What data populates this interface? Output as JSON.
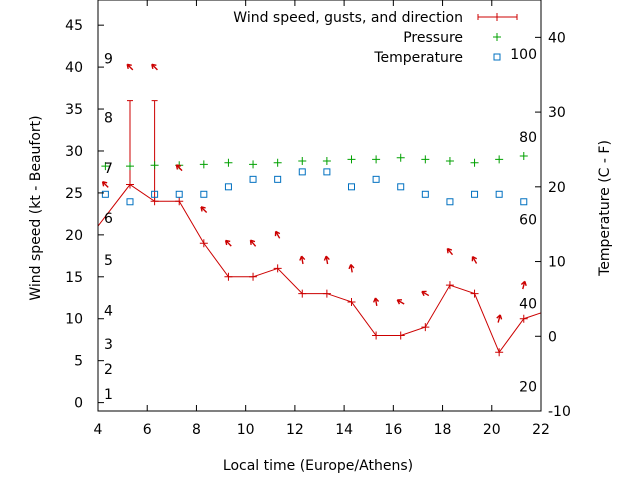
{
  "chart_data": {
    "type": "line",
    "title": "",
    "xlabel": "Local time (Europe/Athens)",
    "ylabel": "Wind speed (kt - Beaufort)",
    "y2label": "Temperature (C - F)",
    "xlim": [
      4,
      22
    ],
    "ylim": [
      -1,
      48
    ],
    "y2lim": [
      -10,
      45
    ],
    "xticks": [
      "4",
      "6",
      "8",
      "10",
      "12",
      "14",
      "16",
      "18",
      "20",
      "22"
    ],
    "yticks": [
      "0",
      "5",
      "10",
      "15",
      "20",
      "25",
      "30",
      "35",
      "40",
      "45"
    ],
    "y2ticks": [
      "-10",
      "0",
      "10",
      "20",
      "30",
      "40"
    ],
    "beaufort_labels": [
      {
        "label": "1",
        "y": 1
      },
      {
        "label": "2",
        "y": 4
      },
      {
        "label": "3",
        "y": 7
      },
      {
        "label": "4",
        "y": 11
      },
      {
        "label": "5",
        "y": 17
      },
      {
        "label": "6",
        "y": 22
      },
      {
        "label": "7",
        "y": 28
      },
      {
        "label": "8",
        "y": 34
      },
      {
        "label": "9",
        "y": 41
      }
    ],
    "fahrenheit_labels": [
      {
        "label": "20",
        "y2": -6.7
      },
      {
        "label": "40",
        "y2": 4.4
      },
      {
        "label": "60",
        "y2": 15.6
      },
      {
        "label": "80",
        "y2": 26.7
      },
      {
        "label": "100",
        "y2": 37.8
      }
    ],
    "legend": {
      "position": "top-right",
      "items": [
        {
          "label": "Wind speed, gusts, and direction",
          "color": "#cc0000",
          "marker": "errorbar"
        },
        {
          "label": "Pressure",
          "color": "#00a000",
          "marker": "plus"
        },
        {
          "label": "Temperature",
          "color": "#0070c0",
          "marker": "square"
        }
      ]
    },
    "wind_speed": {
      "x": [
        3.2,
        5.3,
        6.3,
        7.3,
        8.3,
        9.3,
        10.3,
        11.3,
        12.3,
        13.3,
        14.3,
        15.3,
        16.3,
        17.3,
        18.3,
        19.3,
        20.3,
        21.3,
        22.3
      ],
      "y": [
        18,
        26,
        24,
        24,
        19,
        15,
        15,
        16,
        13,
        13,
        12,
        8,
        8,
        9,
        14,
        13,
        6,
        10,
        11
      ]
    },
    "gusts": [
      {
        "x": 5.3,
        "y": 36
      },
      {
        "x": 6.3,
        "y": 36
      }
    ],
    "wind_direction": {
      "x": [
        4.3,
        5.3,
        6.3,
        7.3,
        8.3,
        9.3,
        10.3,
        11.3,
        12.3,
        13.3,
        14.3,
        15.3,
        16.3,
        17.3,
        18.3,
        19.3,
        20.3,
        21.3
      ],
      "y": [
        26,
        40,
        40,
        28,
        23,
        19,
        19,
        20,
        17,
        17,
        16,
        12,
        12,
        13,
        18,
        17,
        10,
        14
      ],
      "deg": [
        315,
        315,
        315,
        315,
        315,
        315,
        320,
        330,
        350,
        350,
        350,
        350,
        300,
        300,
        320,
        330,
        15,
        15
      ]
    },
    "pressure": {
      "x": [
        4.3,
        5.3,
        6.3,
        7.3,
        8.3,
        9.3,
        10.3,
        11.3,
        12.3,
        13.3,
        14.3,
        15.3,
        16.3,
        17.3,
        18.3,
        19.3,
        20.3,
        21.3
      ],
      "y": [
        28.2,
        28.2,
        28.3,
        28.3,
        28.4,
        28.6,
        28.4,
        28.6,
        28.8,
        28.8,
        29.0,
        29.0,
        29.2,
        29.0,
        28.8,
        28.6,
        29.0,
        29.4
      ]
    },
    "temperature": {
      "x": [
        4.3,
        5.3,
        6.3,
        7.3,
        8.3,
        9.3,
        10.3,
        11.3,
        12.3,
        13.3,
        14.3,
        15.3,
        16.3,
        17.3,
        18.3,
        19.3,
        20.3,
        21.3
      ],
      "y2": [
        19,
        18,
        19,
        19,
        19,
        20,
        21,
        21,
        22,
        22,
        20,
        21,
        20,
        19,
        18,
        19,
        19,
        18
      ]
    },
    "grid": false
  }
}
